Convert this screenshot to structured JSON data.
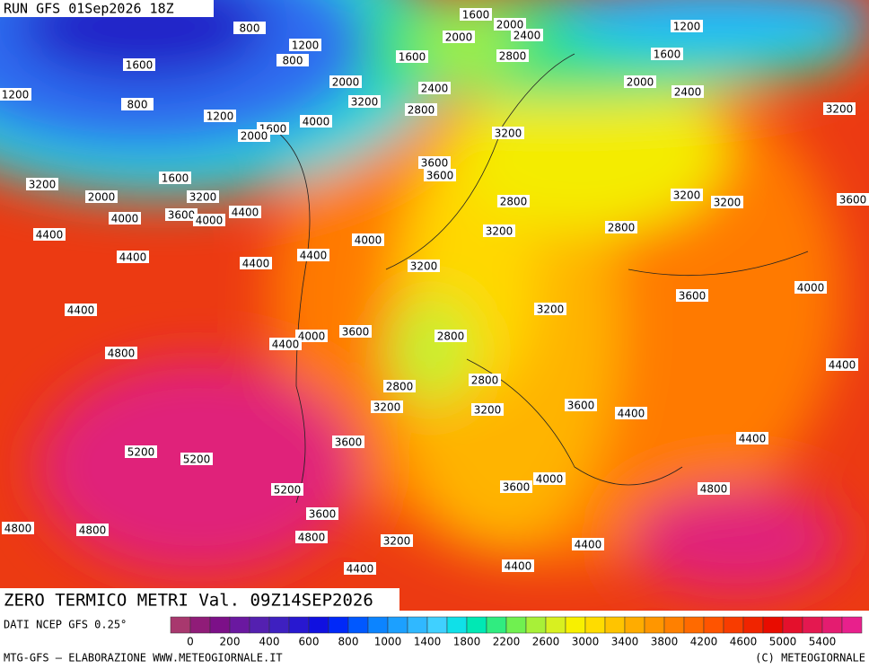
{
  "header": "RUN GFS 01Sep2026 18Z",
  "title": "ZERO TERMICO METRI Val. 09Z14SEP2026",
  "source": "DATI NCEP GFS 0.25°",
  "footer_left": "MTG-GFS — ELABORAZIONE WWW.METEOGIORNALE.IT",
  "footer_right": "(C) METEOGIORNALE",
  "contour_labels": [
    1600,
    2000,
    2400,
    1200,
    800,
    1200,
    800,
    2000,
    1600,
    2800,
    1600,
    1600,
    2000,
    2400,
    2000,
    2400,
    1200,
    800,
    1200,
    3200,
    2800,
    3200,
    4000,
    1600,
    2000,
    3200,
    3600,
    3600,
    1600,
    3200,
    3200,
    2000,
    2800,
    3200,
    3200,
    3600,
    4000,
    3600,
    4000,
    4400,
    3200,
    2800,
    4400,
    4000,
    4400,
    4400,
    4400,
    3200,
    3600,
    4000,
    3200,
    4400,
    3600,
    4000,
    4400,
    2800,
    4800,
    4400,
    2800,
    2800,
    3200,
    3200,
    3600,
    4400,
    4400,
    3600,
    5200,
    5200,
    4000,
    3600,
    5200,
    4800,
    3600,
    4800,
    4800,
    4800,
    3200,
    4400,
    4400,
    4400
  ],
  "colorbar": {
    "colors": [
      "#a8386e",
      "#901c78",
      "#7c1088",
      "#6a18a0",
      "#5420b0",
      "#3e20c0",
      "#2818d0",
      "#1010e0",
      "#0028f8",
      "#0058ff",
      "#0c84ff",
      "#1ca0ff",
      "#30b8ff",
      "#40d0ff",
      "#10e0e8",
      "#00e8b4",
      "#30ec80",
      "#70f050",
      "#a8f038",
      "#d8f020",
      "#f8f000",
      "#ffdc00",
      "#ffc400",
      "#ffac00",
      "#ff9600",
      "#ff8000",
      "#ff6a00",
      "#ff5400",
      "#f83c00",
      "#f02400",
      "#e80c00",
      "#e4102c",
      "#e41850",
      "#e41c70",
      "#e8208c"
    ],
    "ticks": [
      0,
      200,
      400,
      600,
      800,
      1000,
      1400,
      1800,
      2200,
      2600,
      3000,
      3400,
      3800,
      4200,
      4600,
      5000,
      5400
    ]
  }
}
